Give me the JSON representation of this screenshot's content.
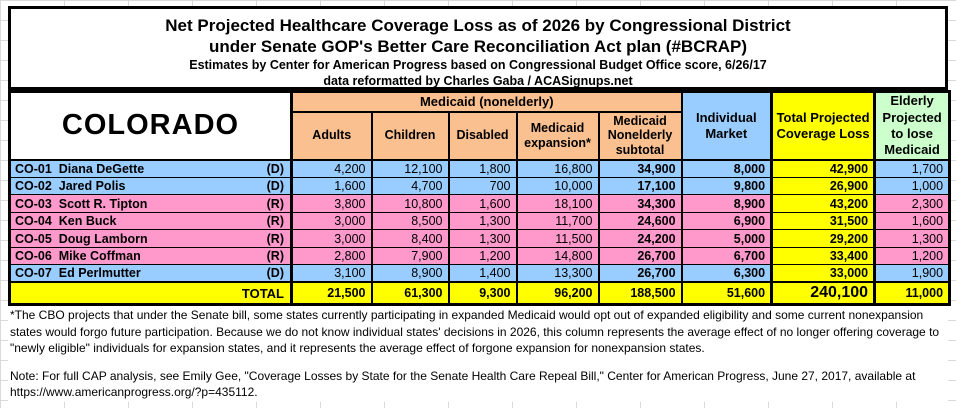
{
  "title": {
    "line1": "Net Projected Healthcare Coverage Loss as of 2026 by Congressional District",
    "line2": "under Senate GOP's Better Care Reconciliation Act plan (#BCRAP)",
    "line3": "Estimates by Center for American Progress based on Congressional Budget Office score, 6/26/17",
    "line4": "data reformatted by Charles Gaba / ACASignups.net"
  },
  "state_label": "COLORADO",
  "table": {
    "group_header": "Medicaid (nonelderly)",
    "sub_columns": [
      "Adults",
      "Children",
      "Disabled",
      "Medicaid expansion*",
      "Medicaid Nonelderly subtotal"
    ],
    "individual_header": "Individual Market",
    "total_header": "Total Projected Coverage Loss",
    "elderly_header": "Elderly Projected to lose Medicaid",
    "rows": [
      {
        "district": "CO-01",
        "representative": "Diana DeGette",
        "party": "(D)",
        "values": [
          "4,200",
          "12,100",
          "1,800",
          "16,800",
          "34,900",
          "8,000",
          "42,900",
          "1,700"
        ]
      },
      {
        "district": "CO-02",
        "representative": "Jared Polis",
        "party": "(D)",
        "values": [
          "1,600",
          "4,700",
          "700",
          "10,000",
          "17,100",
          "9,800",
          "26,900",
          "1,000"
        ]
      },
      {
        "district": "CO-03",
        "representative": "Scott R. Tipton",
        "party": "(R)",
        "values": [
          "3,800",
          "10,800",
          "1,600",
          "18,100",
          "34,300",
          "8,900",
          "43,200",
          "2,300"
        ]
      },
      {
        "district": "CO-04",
        "representative": "Ken Buck",
        "party": "(R)",
        "values": [
          "3,000",
          "8,500",
          "1,300",
          "11,700",
          "24,600",
          "6,900",
          "31,500",
          "1,600"
        ]
      },
      {
        "district": "CO-05",
        "representative": "Doug Lamborn",
        "party": "(R)",
        "values": [
          "3,000",
          "8,400",
          "1,300",
          "11,500",
          "24,200",
          "5,000",
          "29,200",
          "1,300"
        ]
      },
      {
        "district": "CO-06",
        "representative": "Mike Coffman",
        "party": "(R)",
        "values": [
          "2,800",
          "7,900",
          "1,200",
          "14,800",
          "26,700",
          "6,700",
          "33,400",
          "1,200"
        ]
      },
      {
        "district": "CO-07",
        "representative": "Ed Perlmutter",
        "party": "(D)",
        "values": [
          "3,100",
          "8,900",
          "1,400",
          "13,300",
          "26,700",
          "6,300",
          "33,000",
          "1,900"
        ]
      }
    ],
    "total_label": "TOTAL",
    "total_values": [
      "21,500",
      "61,300",
      "9,300",
      "96,200",
      "188,500",
      "51,600",
      "240,100",
      "11,000"
    ]
  },
  "notes": {
    "footnote": "*The CBO projects that under the Senate bill, some states currently participating in expanded Medicaid would opt out of expanded eligibility and some current nonexpansion states would forgo future participation. Because we do not know individual states' decisions in 2026, this column represents the average effect of no longer offering coverage to \"newly eligible\" individuals for expansion states, and it represents the average effect of forgone expansion for nonexpansion states.",
    "source_line1": "Note: For full CAP analysis, see Emily Gee, \"Coverage Losses by State for the Senate Health Care Repeal Bill,\" Center for American Progress, June 27, 2017, available at",
    "source_url": "https://www.americanprogress.org/?p=435112."
  },
  "colors": {
    "democrat_row": "#99CCFF",
    "republican_row": "#FF99CC",
    "medicaid_header": "#FAC090",
    "individual_header": "#99CCFF",
    "total_column": "#FFFF00",
    "elderly_header": "#CCFFCC",
    "border": "#000000"
  },
  "chart_data": {
    "type": "table",
    "title": "Net Projected Healthcare Coverage Loss as of 2026 by Congressional District under Senate GOP's Better Care Reconciliation Act plan (#BCRAP)",
    "state": "Colorado",
    "columns": [
      "Adults",
      "Children",
      "Disabled",
      "Medicaid expansion",
      "Medicaid Nonelderly subtotal",
      "Individual Market",
      "Total Projected Coverage Loss",
      "Elderly Projected to lose Medicaid"
    ],
    "rows": [
      {
        "district": "CO-01",
        "representative": "Diana DeGette",
        "party": "D",
        "adults": 4200,
        "children": 12100,
        "disabled": 1800,
        "medicaid_expansion": 16800,
        "medicaid_nonelderly_subtotal": 34900,
        "individual_market": 8000,
        "total_projected_coverage_loss": 42900,
        "elderly_projected_to_lose_medicaid": 1700
      },
      {
        "district": "CO-02",
        "representative": "Jared Polis",
        "party": "D",
        "adults": 1600,
        "children": 4700,
        "disabled": 700,
        "medicaid_expansion": 10000,
        "medicaid_nonelderly_subtotal": 17100,
        "individual_market": 9800,
        "total_projected_coverage_loss": 26900,
        "elderly_projected_to_lose_medicaid": 1000
      },
      {
        "district": "CO-03",
        "representative": "Scott R. Tipton",
        "party": "R",
        "adults": 3800,
        "children": 10800,
        "disabled": 1600,
        "medicaid_expansion": 18100,
        "medicaid_nonelderly_subtotal": 34300,
        "individual_market": 8900,
        "total_projected_coverage_loss": 43200,
        "elderly_projected_to_lose_medicaid": 2300
      },
      {
        "district": "CO-04",
        "representative": "Ken Buck",
        "party": "R",
        "adults": 3000,
        "children": 8500,
        "disabled": 1300,
        "medicaid_expansion": 11700,
        "medicaid_nonelderly_subtotal": 24600,
        "individual_market": 6900,
        "total_projected_coverage_loss": 31500,
        "elderly_projected_to_lose_medicaid": 1600
      },
      {
        "district": "CO-05",
        "representative": "Doug Lamborn",
        "party": "R",
        "adults": 3000,
        "children": 8400,
        "disabled": 1300,
        "medicaid_expansion": 11500,
        "medicaid_nonelderly_subtotal": 24200,
        "individual_market": 5000,
        "total_projected_coverage_loss": 29200,
        "elderly_projected_to_lose_medicaid": 1300
      },
      {
        "district": "CO-06",
        "representative": "Mike Coffman",
        "party": "R",
        "adults": 2800,
        "children": 7900,
        "disabled": 1200,
        "medicaid_expansion": 14800,
        "medicaid_nonelderly_subtotal": 26700,
        "individual_market": 6700,
        "total_projected_coverage_loss": 33400,
        "elderly_projected_to_lose_medicaid": 1200
      },
      {
        "district": "CO-07",
        "representative": "Ed Perlmutter",
        "party": "D",
        "adults": 3100,
        "children": 8900,
        "disabled": 1400,
        "medicaid_expansion": 13300,
        "medicaid_nonelderly_subtotal": 26700,
        "individual_market": 6300,
        "total_projected_coverage_loss": 33000,
        "elderly_projected_to_lose_medicaid": 1900
      }
    ],
    "totals": {
      "adults": 21500,
      "children": 61300,
      "disabled": 9300,
      "medicaid_expansion": 96200,
      "medicaid_nonelderly_subtotal": 188500,
      "individual_market": 51600,
      "total_projected_coverage_loss": 240100,
      "elderly_projected_to_lose_medicaid": 11000
    }
  }
}
